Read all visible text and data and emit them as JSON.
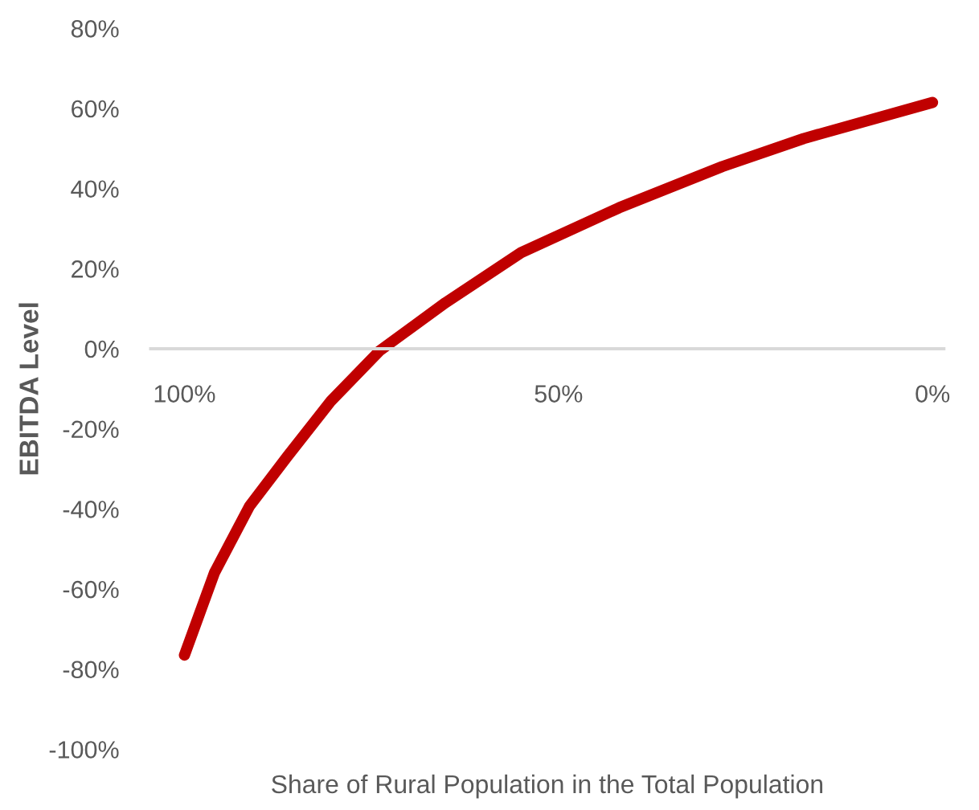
{
  "chart_data": {
    "type": "line",
    "xlabel": "Share of Rural Population in the Total Population",
    "ylabel": "EBITDA Level",
    "x": [
      100,
      96,
      91.3,
      86.2,
      80.4,
      73.9,
      65.1,
      55,
      41.9,
      28.1,
      17.2,
      0
    ],
    "series": [
      {
        "color": "#c00000",
        "values": [
          -76.5,
          -56,
          -39.3,
          -26.8,
          -13,
          -0.5,
          11.5,
          24,
          35.2,
          45.5,
          52.5,
          61.5
        ]
      }
    ],
    "xlim": [
      104.5,
      -1.5
    ],
    "xticks": [
      {
        "value": 100,
        "label": "100%"
      },
      {
        "value": 50,
        "label": "50%"
      },
      {
        "value": 0,
        "label": "0%"
      }
    ],
    "ylim": [
      -100,
      80
    ],
    "yticks": [
      {
        "value": -100,
        "label": "-100%"
      },
      {
        "value": -80,
        "label": "-80%"
      },
      {
        "value": -60,
        "label": "-60%"
      },
      {
        "value": -40,
        "label": "-40%"
      },
      {
        "value": -20,
        "label": "-20%"
      },
      {
        "value": 0,
        "label": "0%"
      },
      {
        "value": 20,
        "label": "20%"
      },
      {
        "value": 40,
        "label": "40%"
      },
      {
        "value": 60,
        "label": "60%"
      },
      {
        "value": 80,
        "label": "80%"
      }
    ],
    "grid": false,
    "legend": false,
    "marker": "none",
    "line_style": "solid"
  }
}
